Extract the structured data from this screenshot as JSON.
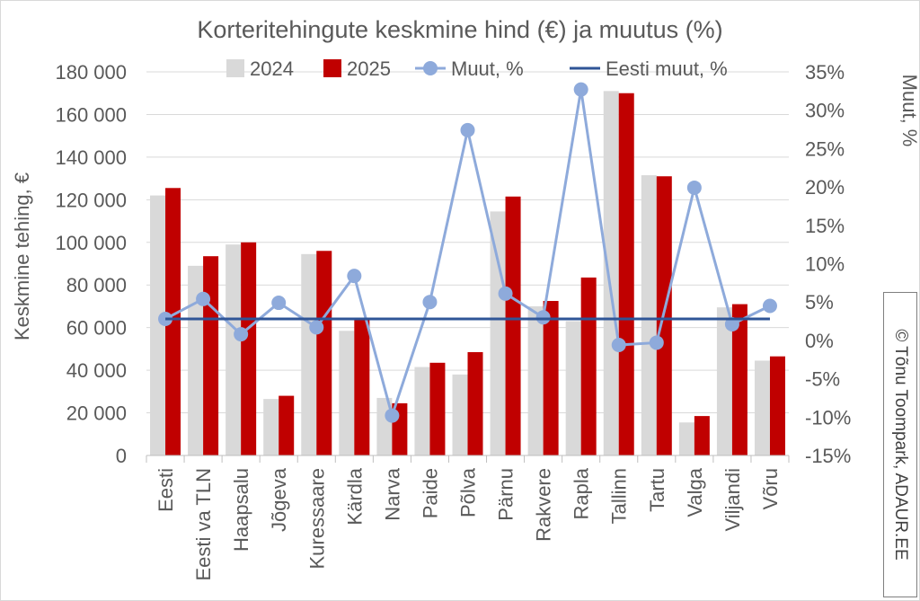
{
  "chart_data": {
    "type": "bar",
    "title": "Korteritehingute keskmine hind (€) ja muutus (%)",
    "ylabel": "Keskmine tehing, €",
    "y2label": "Muut, %",
    "ylim": [
      0,
      180000
    ],
    "y2lim": [
      -15,
      35
    ],
    "yticks": [
      "0",
      "20 000",
      "40 000",
      "60 000",
      "80 000",
      "100 000",
      "120 000",
      "140 000",
      "160 000",
      "180 000"
    ],
    "y2ticks": [
      "-15%",
      "-10%",
      "-5%",
      "0%",
      "5%",
      "10%",
      "15%",
      "20%",
      "25%",
      "30%",
      "35%"
    ],
    "grid": true,
    "legend": "top",
    "categories": [
      "Eesti",
      "Eesti va TLN",
      "Haapsalu",
      "Jõgeva",
      "Kuressaare",
      "Kärdla",
      "Narva",
      "Paide",
      "Põlva",
      "Pärnu",
      "Rakvere",
      "Rapla",
      "Tallinn",
      "Tartu",
      "Valga",
      "Viljandi",
      "Võru"
    ],
    "series": [
      {
        "name": "2024",
        "kind": "bar",
        "axis": "left",
        "color": "#d9d9d9",
        "values": [
          122000,
          89000,
          99000,
          26500,
          94500,
          58500,
          27000,
          41500,
          38000,
          114500,
          70000,
          63000,
          171000,
          131500,
          15500,
          69500,
          44500
        ]
      },
      {
        "name": "2025",
        "kind": "bar",
        "axis": "left",
        "color": "#c00000",
        "values": [
          125500,
          93500,
          100000,
          28000,
          96000,
          63500,
          24500,
          43500,
          48500,
          121500,
          72500,
          83500,
          170000,
          131000,
          18500,
          71000,
          46500
        ]
      },
      {
        "name": "Muut, %",
        "kind": "line",
        "axis": "right",
        "color": "#8eaadb",
        "values": [
          2.8,
          5.4,
          0.8,
          4.9,
          1.7,
          8.4,
          -9.8,
          5.0,
          27.4,
          6.1,
          3.0,
          32.7,
          -0.6,
          -0.3,
          19.9,
          2.1,
          4.5
        ]
      },
      {
        "name": "Eesti muut, %",
        "kind": "line",
        "axis": "right",
        "color": "#2f5597",
        "values": [
          2.8,
          2.8,
          2.8,
          2.8,
          2.8,
          2.8,
          2.8,
          2.8,
          2.8,
          2.8,
          2.8,
          2.8,
          2.8,
          2.8,
          2.8,
          2.8,
          2.8
        ]
      }
    ]
  },
  "watermark": "© Tõnu Toompark, ADAUR.EE"
}
